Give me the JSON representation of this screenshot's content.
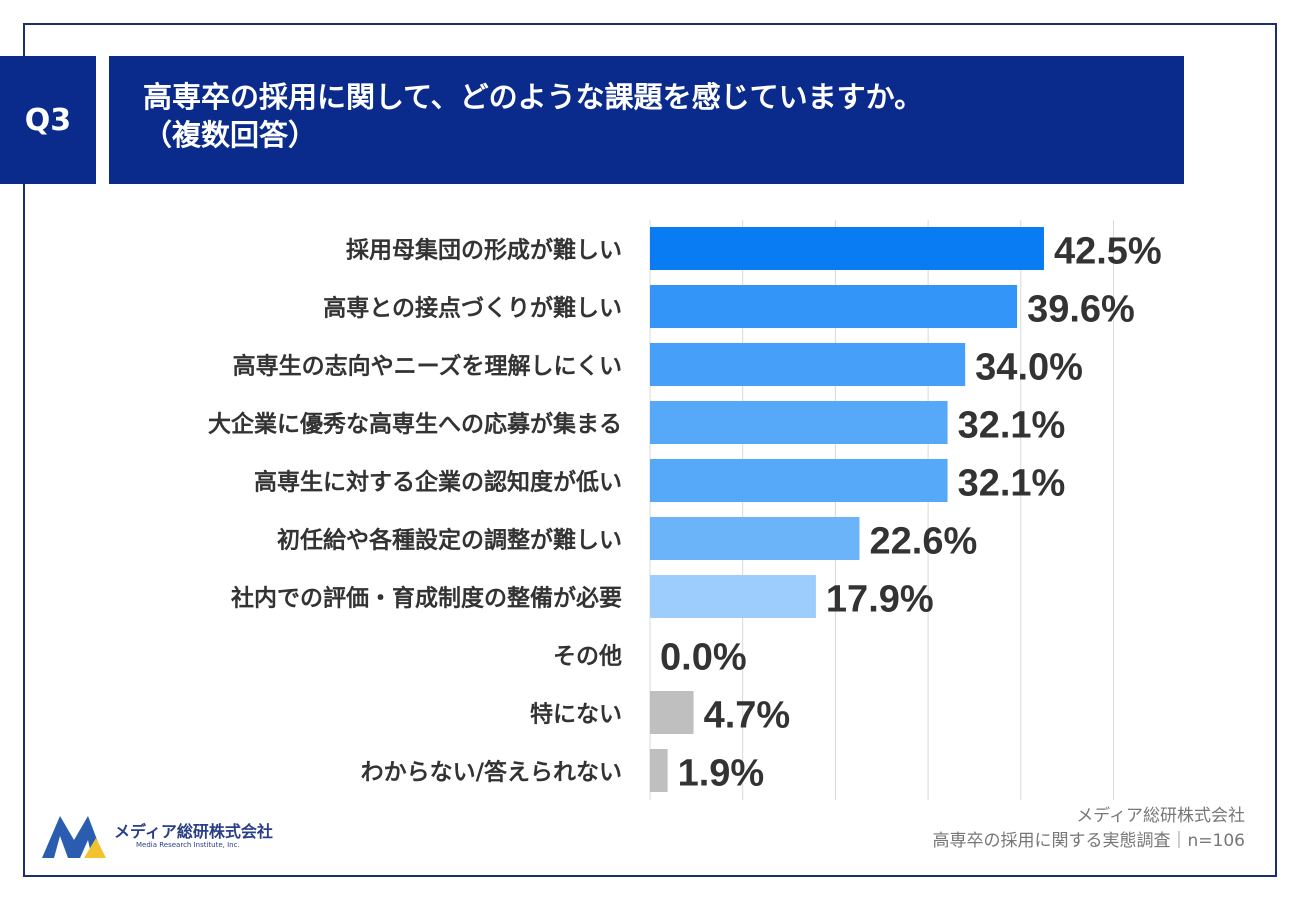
{
  "header": {
    "badge": "Q3",
    "title_line1": "高専卒の採用に関して、どのような課題を感じていますか。",
    "title_line2": "（複数回答）"
  },
  "chart_data": {
    "type": "bar",
    "orientation": "horizontal",
    "categories": [
      "採用母集団の形成が難しい",
      "高専との接点づくりが難しい",
      "高専生の志向やニーズを理解しにくい",
      "大企業に優秀な高専生への応募が集まる",
      "高専生に対する企業の認知度が低い",
      "初任給や各種設定の調整が難しい",
      "社内での評価・育成制度の整備が必要",
      "その他",
      "特にない",
      "わからない/答えられない"
    ],
    "values": [
      42.5,
      39.6,
      34.0,
      32.1,
      32.1,
      22.6,
      17.9,
      0.0,
      4.7,
      1.9
    ],
    "value_labels": [
      "42.5%",
      "39.6%",
      "34.0%",
      "32.1%",
      "32.1%",
      "22.6%",
      "17.9%",
      "0.0%",
      "4.7%",
      "1.9%"
    ],
    "colors": [
      "#0a7cf3",
      "#3395f7",
      "#469ff8",
      "#56a8f8",
      "#56a8f8",
      "#6cb4fa",
      "#9ccdfc",
      "#9ccdfc",
      "#bfbfbf",
      "#bfbfbf"
    ],
    "xlim": [
      0,
      50
    ],
    "grid": true,
    "grid_step": 10
  },
  "footer": {
    "logo_name": "メディア総研株式会社",
    "logo_sub": "Media Research Institute, Inc.",
    "source_line1": "メディア総研株式会社",
    "source_line2": "高専卒の採用に関する実態調査｜n=106"
  },
  "colors": {
    "navy": "#0a2b8c",
    "logo_blue": "#2a5db0",
    "logo_yellow": "#f2c230"
  }
}
